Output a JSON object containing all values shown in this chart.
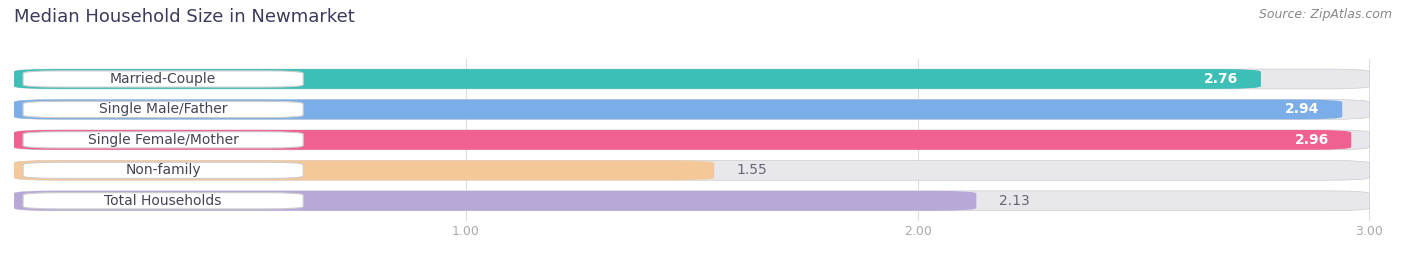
{
  "title": "Median Household Size in Newmarket",
  "source": "Source: ZipAtlas.com",
  "categories": [
    "Married-Couple",
    "Single Male/Father",
    "Single Female/Mother",
    "Non-family",
    "Total Households"
  ],
  "values": [
    2.76,
    2.94,
    2.96,
    1.55,
    2.13
  ],
  "bar_colors": [
    "#3dbfb8",
    "#7baee8",
    "#f06090",
    "#f5c89a",
    "#b8a8d8"
  ],
  "label_text_colors": [
    "#555555",
    "#555555",
    "#555555",
    "#555555",
    "#555555"
  ],
  "value_white": [
    true,
    true,
    true,
    false,
    false
  ],
  "xlim_data": [
    0.0,
    3.0
  ],
  "xstart": 0.0,
  "xticks": [
    1.0,
    2.0,
    3.0
  ],
  "background_color": "#ffffff",
  "bar_bg_color": "#e8e8ec",
  "label_bg_color": "#ffffff",
  "title_fontsize": 13,
  "source_fontsize": 9,
  "label_fontsize": 10,
  "value_fontsize": 10,
  "title_color": "#3a3a5c",
  "source_color": "#888888",
  "tick_color": "#aaaaaa",
  "grid_color": "#dddddd"
}
